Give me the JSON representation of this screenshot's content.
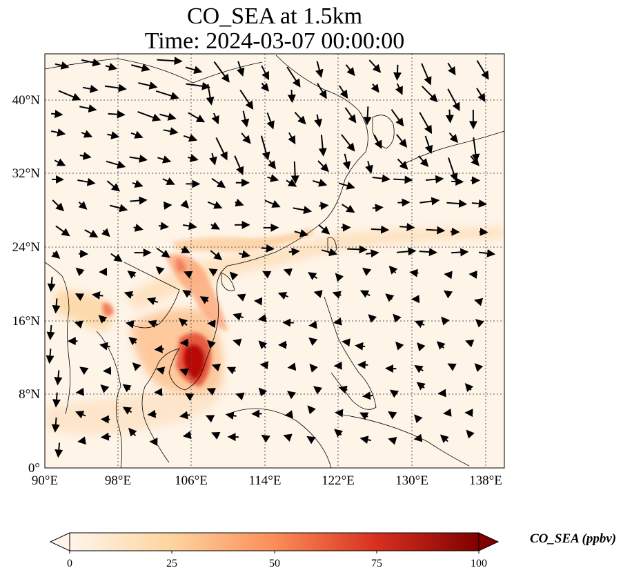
{
  "title": {
    "line1": "CO_SEA at 1.5km",
    "line2": "Time: 2024-03-07 00:00:00"
  },
  "map": {
    "lon_ticks": [
      "90°E",
      "98°E",
      "106°E",
      "114°E",
      "122°E",
      "130°E",
      "138°E"
    ],
    "lat_ticks": [
      "0°",
      "8°N",
      "16°N",
      "24°N",
      "32°N",
      "40°N"
    ],
    "lon_range": [
      90,
      140
    ],
    "lat_range": [
      0,
      45
    ],
    "gridlines": "dotted",
    "field": "CO concentration (orange-red shading) with wind vector arrows",
    "hotspot": "Cambodia / southern Vietnam"
  },
  "colorbar": {
    "label": "CO_SEA (ppbv)",
    "ticks": [
      "0",
      "25",
      "50",
      "75",
      "100"
    ],
    "range": [
      0,
      100
    ],
    "colors": [
      "#fff5eb",
      "#fdd49e",
      "#fc8d59",
      "#d7301f",
      "#7f0000"
    ],
    "extend": "both"
  }
}
